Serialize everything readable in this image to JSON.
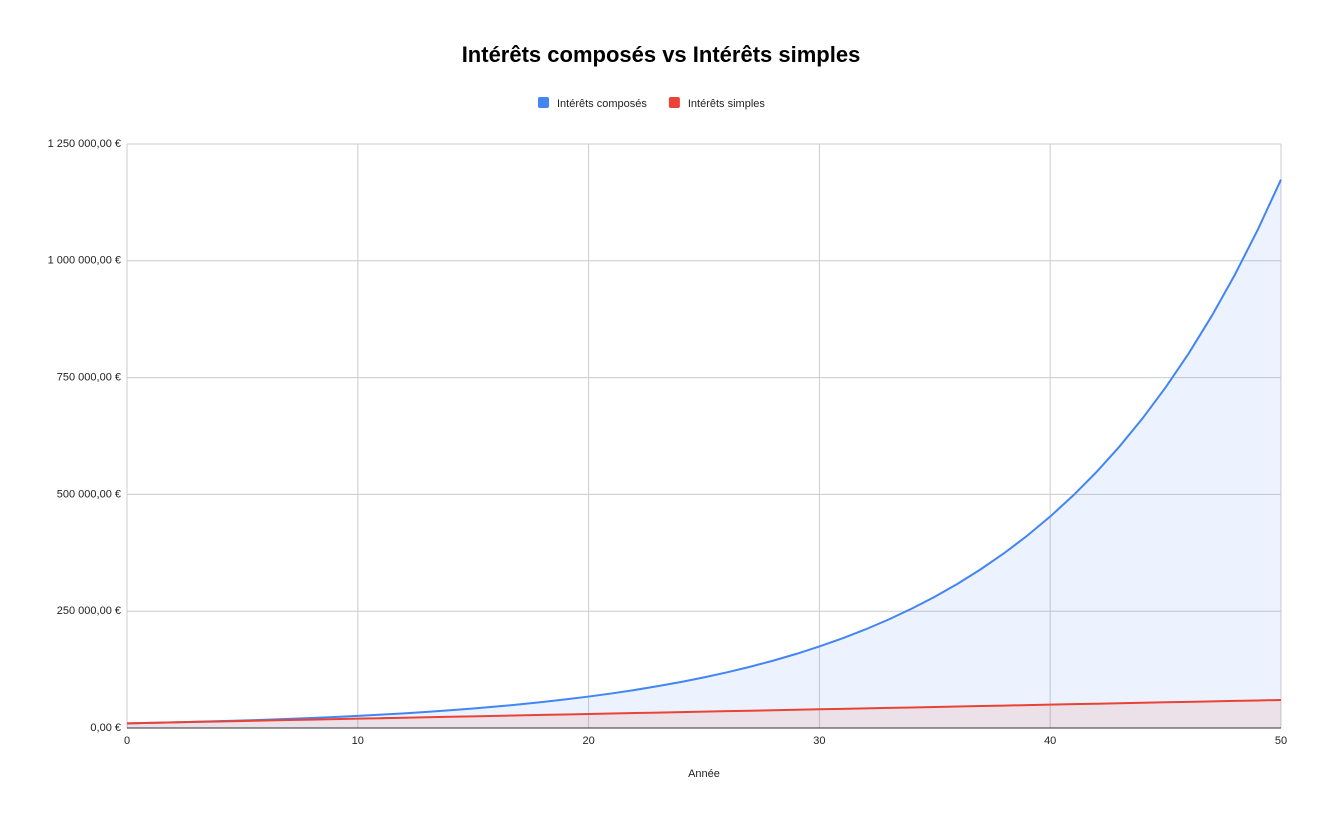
{
  "chart_data": {
    "type": "area-line",
    "title": "Intérêts composés vs Intérêts simples",
    "x_label": "Année",
    "legend": "top",
    "grid": true,
    "x": [
      0,
      1,
      2,
      3,
      4,
      5,
      6,
      7,
      8,
      9,
      10,
      11,
      12,
      13,
      14,
      15,
      16,
      17,
      18,
      19,
      20,
      21,
      22,
      23,
      24,
      25,
      26,
      27,
      28,
      29,
      30,
      31,
      32,
      33,
      34,
      35,
      36,
      37,
      38,
      39,
      40,
      41,
      42,
      43,
      44,
      45,
      46,
      47,
      48,
      49,
      50
    ],
    "series": [
      {
        "name": "Intérêts composés",
        "color": "#4285f4",
        "values": [
          10000,
          11000,
          12100,
          13310,
          14641,
          16105,
          17716,
          19487,
          21436,
          23579,
          25937,
          28531,
          31384,
          34523,
          37975,
          41772,
          45950,
          50545,
          55599,
          61159,
          67275,
          74002,
          81403,
          89543,
          98497,
          108347,
          119182,
          131100,
          144210,
          158631,
          174494,
          191943,
          211138,
          232252,
          255477,
          281024,
          309127,
          340039,
          374043,
          411448,
          452593,
          497852,
          547637,
          602401,
          662641,
          728905,
          801795,
          881975,
          970172,
          1067190,
          1173909
        ]
      },
      {
        "name": "Intérêts simples",
        "color": "#ea4335",
        "values": [
          10000,
          11000,
          12000,
          13000,
          14000,
          15000,
          16000,
          17000,
          18000,
          19000,
          20000,
          21000,
          22000,
          23000,
          24000,
          25000,
          26000,
          27000,
          28000,
          29000,
          30000,
          31000,
          32000,
          33000,
          34000,
          35000,
          36000,
          37000,
          38000,
          39000,
          40000,
          41000,
          42000,
          43000,
          44000,
          45000,
          46000,
          47000,
          48000,
          49000,
          50000,
          51000,
          52000,
          53000,
          54000,
          55000,
          56000,
          57000,
          58000,
          59000,
          60000
        ]
      }
    ],
    "xlim": [
      0,
      50
    ],
    "xticks": [
      0,
      10,
      20,
      30,
      40,
      50
    ],
    "ylim": [
      0,
      1250000
    ],
    "yticks": [
      {
        "value": 0,
        "label": "0,00 €"
      },
      {
        "value": 250000,
        "label": "250 000,00 €"
      },
      {
        "value": 500000,
        "label": "500 000,00 €"
      },
      {
        "value": 750000,
        "label": "750 000,00 €"
      },
      {
        "value": 1000000,
        "label": "1 000 000,00 €"
      },
      {
        "value": 1250000,
        "label": "1 250 000,00 €"
      }
    ]
  }
}
